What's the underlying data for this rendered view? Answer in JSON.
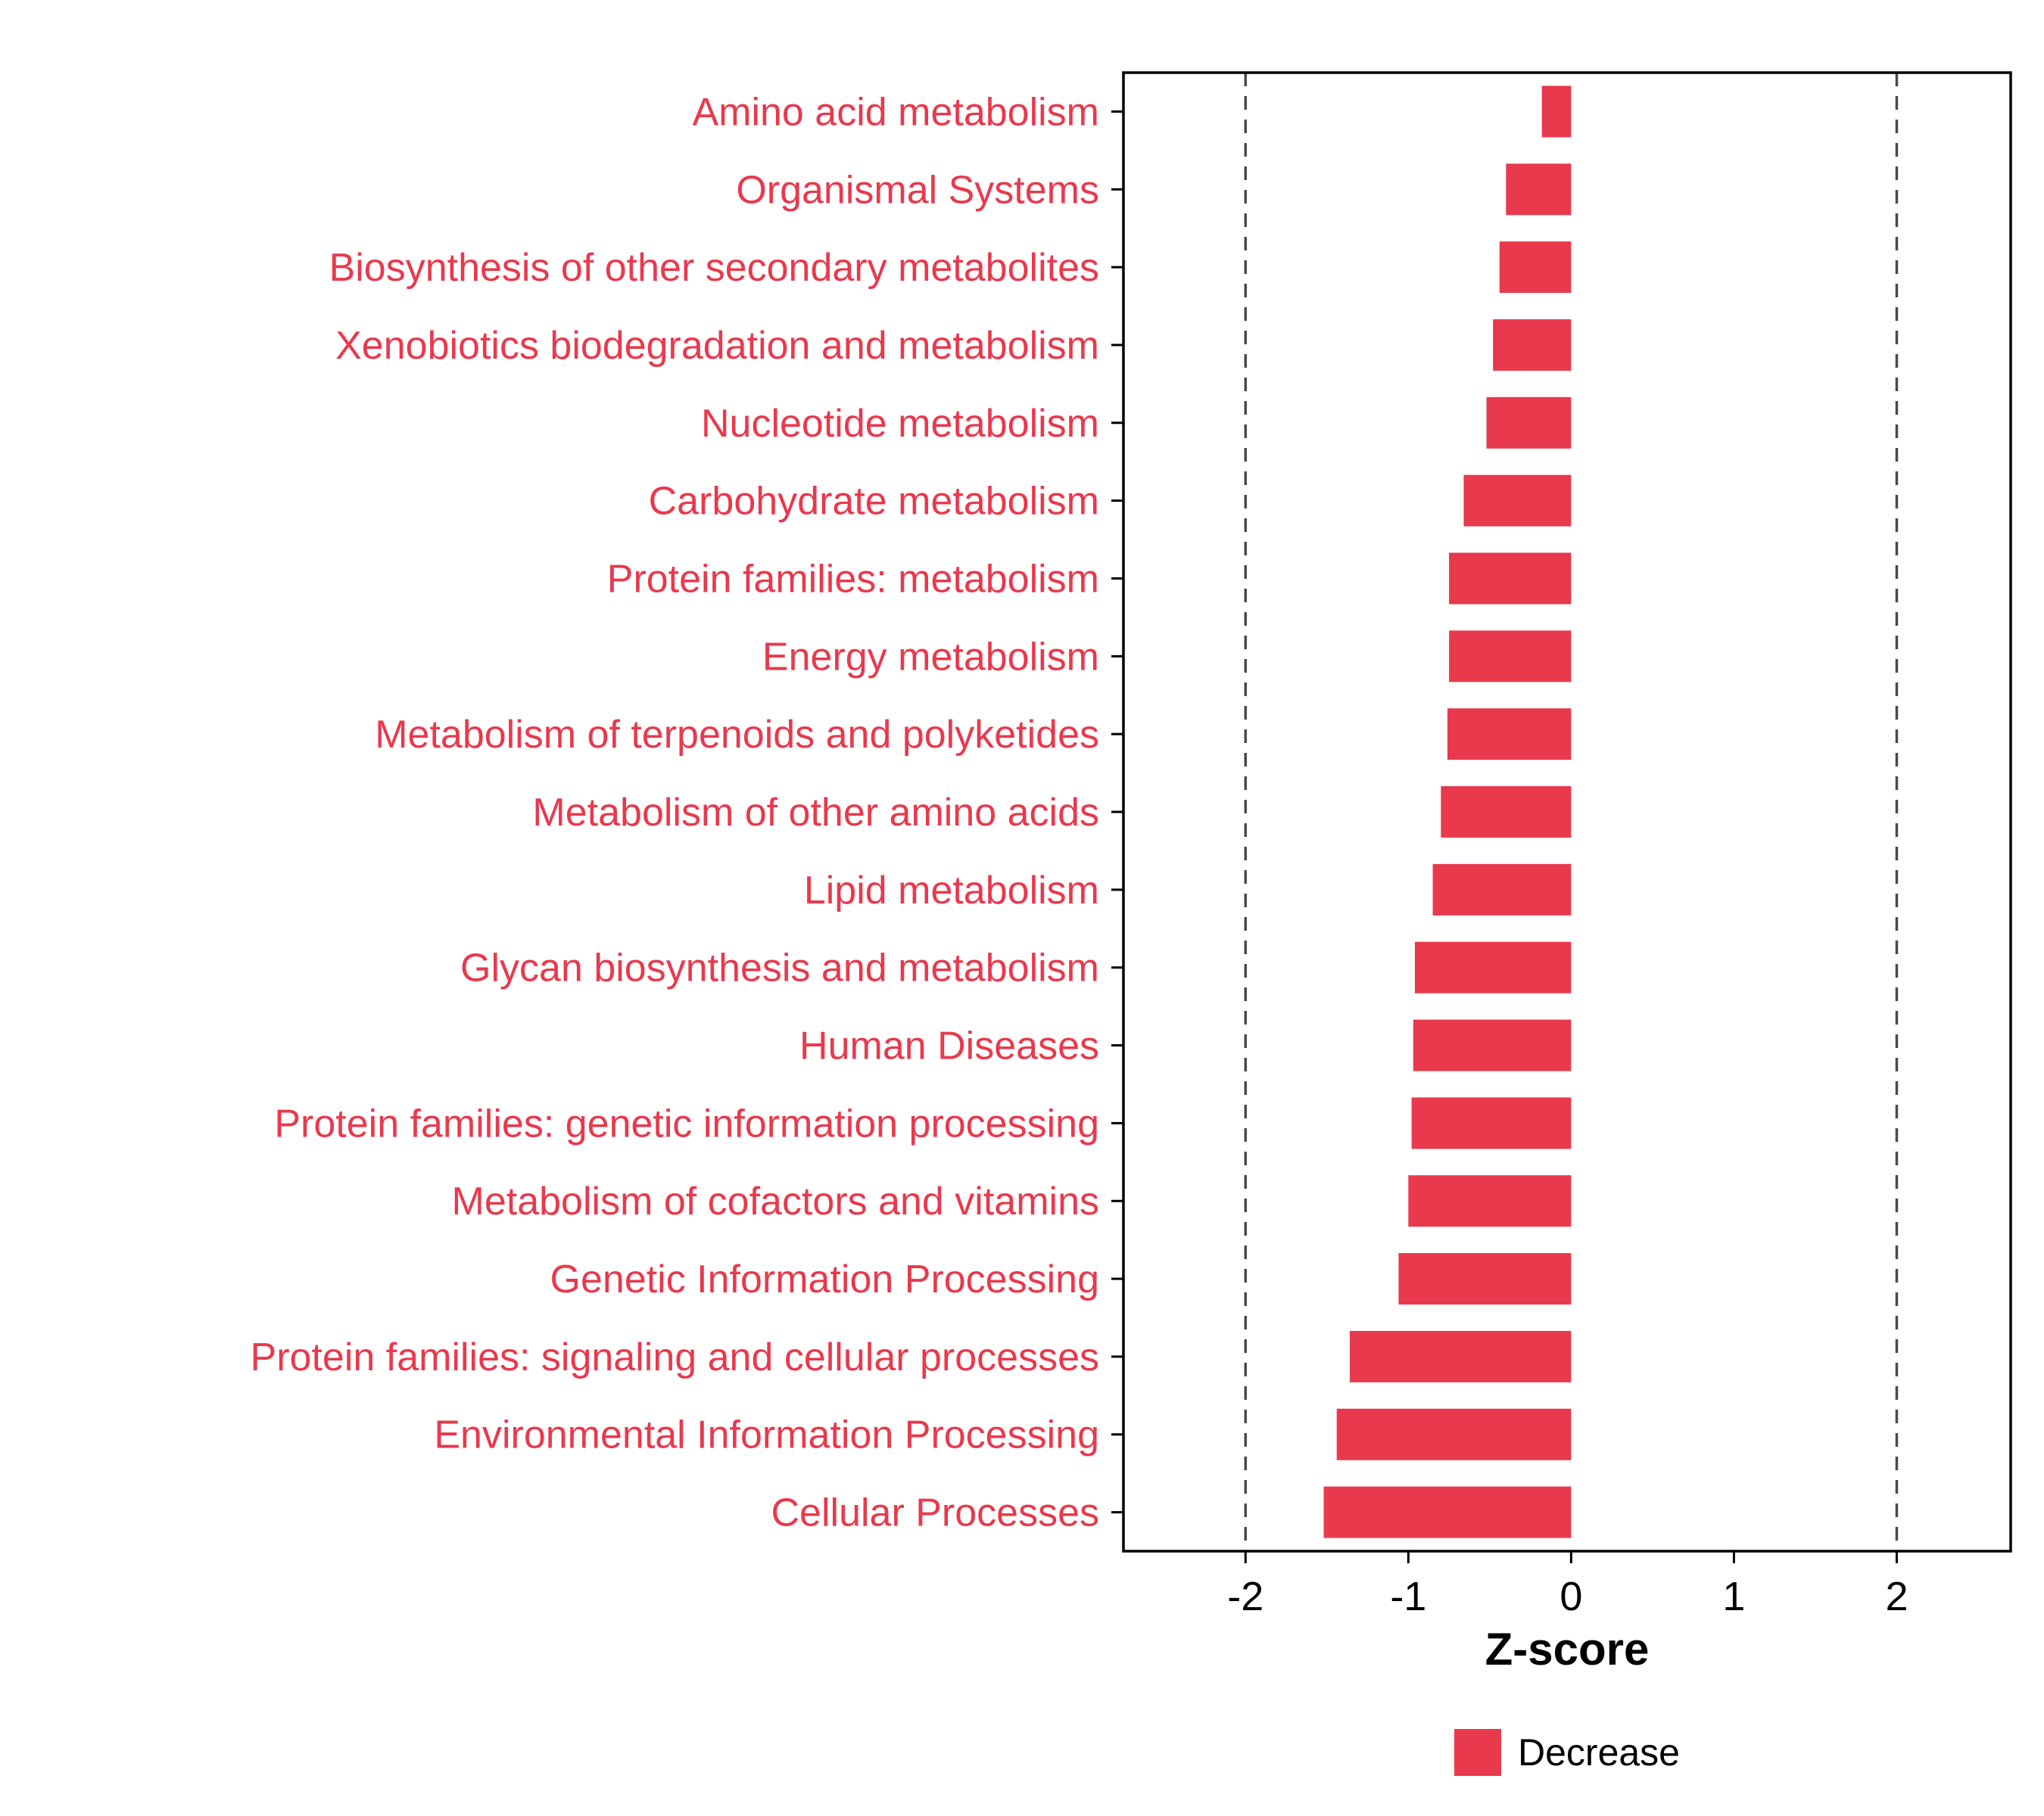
{
  "chart_data": {
    "type": "bar",
    "orientation": "horizontal",
    "title": "",
    "xlabel": "Z-score",
    "ylabel": "",
    "xlim": [
      -2.75,
      2.7
    ],
    "x_ticks": [
      -2,
      -1,
      0,
      1,
      2
    ],
    "reference_lines": [
      -2,
      2
    ],
    "grid": false,
    "categories": [
      "Amino acid metabolism",
      "Organismal Systems",
      "Biosynthesis of other secondary metabolites",
      "Xenobiotics biodegradation and metabolism",
      "Nucleotide metabolism",
      "Carbohydrate metabolism",
      "Protein families: metabolism",
      "Energy metabolism",
      "Metabolism of terpenoids and polyketides",
      "Metabolism of other amino acids",
      "Lipid metabolism",
      "Glycan biosynthesis and metabolism",
      "Human Diseases",
      "Protein families: genetic information processing",
      "Metabolism of cofactors and vitamins",
      "Genetic Information Processing",
      "Protein families: signaling and cellular processes",
      "Environmental Information Processing",
      "Cellular Processes"
    ],
    "values": [
      -0.18,
      -0.4,
      -0.44,
      -0.48,
      -0.52,
      -0.66,
      -0.75,
      -0.75,
      -0.76,
      -0.8,
      -0.85,
      -0.96,
      -0.97,
      -0.98,
      -1.0,
      -1.06,
      -1.36,
      -1.44,
      -1.52
    ],
    "legend": {
      "position": "bottom",
      "entries": [
        {
          "label": "Decrease",
          "color": "#E8394D"
        }
      ]
    },
    "colors": {
      "bar": "#E8394D",
      "category_label": "#E8394D",
      "reference_line": "#4a4a4a",
      "axis_text": "#000000",
      "panel_border": "#000000"
    }
  }
}
